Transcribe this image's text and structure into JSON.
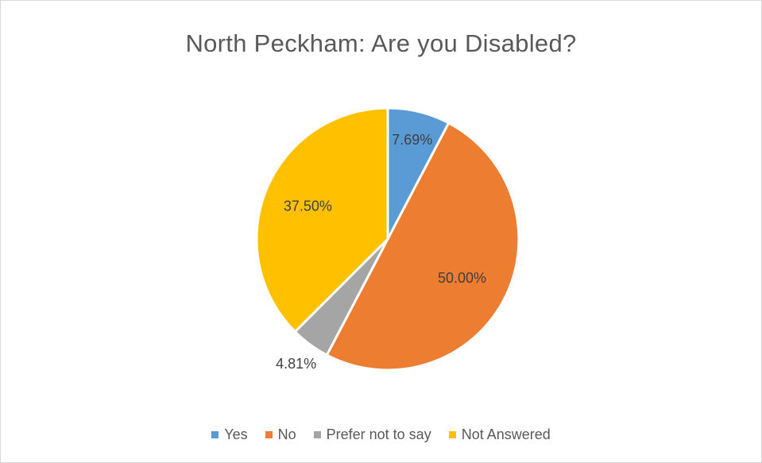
{
  "chart_data": {
    "type": "pie",
    "title": "North Peckham: Are you Disabled?",
    "legend_position": "bottom",
    "slices": [
      {
        "name": "Yes",
        "value": 7.69,
        "label": "7.69%",
        "color": "#5b9bd5"
      },
      {
        "name": "No",
        "value": 50.0,
        "label": "50.00%",
        "color": "#ed7d31"
      },
      {
        "name": "Prefer not to say",
        "value": 4.81,
        "label": "4.81%",
        "color": "#a5a5a5"
      },
      {
        "name": "Not Answered",
        "value": 37.5,
        "label": "37.50%",
        "color": "#ffc000"
      }
    ]
  }
}
